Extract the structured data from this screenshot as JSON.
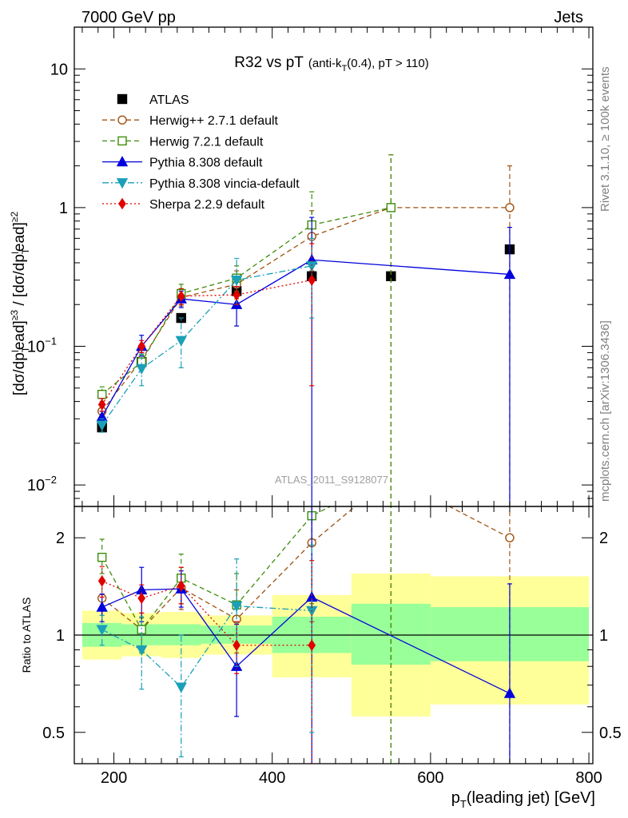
{
  "header": {
    "left": "7000 GeV pp",
    "right": "Jets"
  },
  "plot_title": {
    "main": "R32 vs pT",
    "sub": "(anti-k",
    "sub_sub": "T",
    "sub_tail": "(0.4), pT > 110)"
  },
  "side_labels": {
    "rivet": "Rivet 3.1.10, ≥ 100k events",
    "mcplots": "mcplots.cern.ch [arXiv:1306.3436]"
  },
  "watermark": "ATLAS_2011_S9128077",
  "ratio_ylabel": "Ratio to ATLAS",
  "colors": {
    "atlas": "#000000",
    "herwigpp": "#a0520f",
    "herwig7": "#3c8c0a",
    "pythia": "#0000dd",
    "vincia": "#1aa0b8",
    "sherpa": "#e00000",
    "band_inner": "#99ff99",
    "band_outer": "#ffff99"
  },
  "chart_data": [
    {
      "type": "line",
      "panel": "main",
      "ylabel_parts": [
        "[dσ/dp",
        "T",
        "l",
        "ead]",
        "≥3",
        " / [dσ/dp",
        "T",
        "l",
        "ead]",
        "≥2"
      ],
      "yscale": "log",
      "ylim": [
        0.007,
        20
      ],
      "xlim": [
        150,
        805
      ],
      "yticks": [
        {
          "value": 0.01,
          "label": "10",
          "exp": "−2"
        },
        {
          "value": 0.1,
          "label": "10",
          "exp": "−1"
        },
        {
          "value": 1,
          "label": "1",
          "exp": ""
        },
        {
          "value": 10,
          "label": "10",
          "exp": ""
        }
      ],
      "legend_position": "top-left",
      "series": [
        {
          "name": "ATLAS",
          "style": "data",
          "points": [
            {
              "x": 185,
              "y": 0.026,
              "lo": 0.024,
              "hi": 0.028
            },
            {
              "x": 235,
              "y": 0.077,
              "lo": 0.073,
              "hi": 0.082
            },
            {
              "x": 285,
              "y": 0.16,
              "lo": 0.152,
              "hi": 0.17
            },
            {
              "x": 355,
              "y": 0.25,
              "lo": 0.235,
              "hi": 0.265
            },
            {
              "x": 450,
              "y": 0.32,
              "lo": 0.29,
              "hi": 0.35
            },
            {
              "x": 550,
              "y": 0.32,
              "lo": 0.3,
              "hi": 0.34
            },
            {
              "x": 700,
              "y": 0.5,
              "lo": 0.46,
              "hi": 0.54
            }
          ]
        },
        {
          "name": "Herwig++ 2.7.1 default",
          "style": "herwigpp",
          "points": [
            {
              "x": 185,
              "y": 0.034,
              "lo": 0.03,
              "hi": 0.038
            },
            {
              "x": 235,
              "y": 0.08,
              "lo": 0.07,
              "hi": 0.09
            },
            {
              "x": 285,
              "y": 0.225,
              "lo": 0.195,
              "hi": 0.26
            },
            {
              "x": 355,
              "y": 0.28,
              "lo": 0.22,
              "hi": 0.35
            },
            {
              "x": 450,
              "y": 0.62,
              "lo": 0.35,
              "hi": 0.95
            },
            {
              "x": 550,
              "y": 1.0,
              "lo": 0.004,
              "hi": 2.4
            },
            {
              "x": 700,
              "y": 1.0,
              "lo": 0.004,
              "hi": 2.0
            }
          ]
        },
        {
          "name": "Herwig 7.2.1 default",
          "style": "herwig7",
          "points": [
            {
              "x": 185,
              "y": 0.045,
              "lo": 0.04,
              "hi": 0.051
            },
            {
              "x": 235,
              "y": 0.077,
              "lo": 0.068,
              "hi": 0.087
            },
            {
              "x": 285,
              "y": 0.24,
              "lo": 0.2,
              "hi": 0.28
            },
            {
              "x": 355,
              "y": 0.31,
              "lo": 0.25,
              "hi": 0.38
            },
            {
              "x": 450,
              "y": 0.75,
              "lo": 0.4,
              "hi": 1.3
            },
            {
              "x": 550,
              "y": 1.0,
              "lo": 0.004,
              "hi": 2.4
            }
          ]
        },
        {
          "name": "Pythia 8.308 default",
          "style": "pythia",
          "points": [
            {
              "x": 185,
              "y": 0.031,
              "lo": 0.028,
              "hi": 0.034
            },
            {
              "x": 235,
              "y": 0.1,
              "lo": 0.085,
              "hi": 0.12
            },
            {
              "x": 285,
              "y": 0.22,
              "lo": 0.19,
              "hi": 0.25
            },
            {
              "x": 355,
              "y": 0.2,
              "lo": 0.14,
              "hi": 0.27
            },
            {
              "x": 450,
              "y": 0.42,
              "lo": 0.004,
              "hi": 0.85
            },
            {
              "x": 700,
              "y": 0.33,
              "lo": 0.004,
              "hi": 0.72
            }
          ]
        },
        {
          "name": "Pythia 8.308 vincia-default",
          "style": "vincia",
          "points": [
            {
              "x": 185,
              "y": 0.027,
              "lo": 0.024,
              "hi": 0.03
            },
            {
              "x": 235,
              "y": 0.069,
              "lo": 0.052,
              "hi": 0.088
            },
            {
              "x": 285,
              "y": 0.11,
              "lo": 0.07,
              "hi": 0.16
            },
            {
              "x": 355,
              "y": 0.3,
              "lo": 0.2,
              "hi": 0.43
            },
            {
              "x": 450,
              "y": 0.38,
              "lo": 0.16,
              "hi": 0.6
            }
          ]
        },
        {
          "name": "Sherpa 2.2.9 default",
          "style": "sherpa",
          "points": [
            {
              "x": 185,
              "y": 0.038,
              "lo": 0.034,
              "hi": 0.042
            },
            {
              "x": 235,
              "y": 0.1,
              "lo": 0.09,
              "hi": 0.11
            },
            {
              "x": 285,
              "y": 0.23,
              "lo": 0.2,
              "hi": 0.26
            },
            {
              "x": 355,
              "y": 0.235,
              "lo": 0.2,
              "hi": 0.27
            },
            {
              "x": 450,
              "y": 0.3,
              "lo": 0.052,
              "hi": 0.55
            }
          ]
        }
      ]
    },
    {
      "type": "line",
      "panel": "ratio",
      "xlabel_parts": [
        "p",
        "T",
        "(leading jet) [GeV]"
      ],
      "ylabel": "Ratio to ATLAS",
      "yscale": "log",
      "ylim": [
        0.4,
        2.5
      ],
      "xlim": [
        150,
        805
      ],
      "yticks": [
        0.5,
        1,
        2
      ],
      "xticks": [
        200,
        400,
        600,
        800
      ],
      "bands": [
        {
          "x0": 160,
          "x1": 210,
          "inner_lo": 0.92,
          "inner_hi": 1.09,
          "outer_lo": 0.84,
          "outer_hi": 1.19
        },
        {
          "x0": 210,
          "x1": 260,
          "inner_lo": 0.93,
          "inner_hi": 1.08,
          "outer_lo": 0.86,
          "outer_hi": 1.17
        },
        {
          "x0": 260,
          "x1": 310,
          "inner_lo": 0.93,
          "inner_hi": 1.08,
          "outer_lo": 0.85,
          "outer_hi": 1.18
        },
        {
          "x0": 310,
          "x1": 400,
          "inner_lo": 0.94,
          "inner_hi": 1.07,
          "outer_lo": 0.87,
          "outer_hi": 1.15
        },
        {
          "x0": 400,
          "x1": 500,
          "inner_lo": 0.88,
          "inner_hi": 1.14,
          "outer_lo": 0.74,
          "outer_hi": 1.33
        },
        {
          "x0": 500,
          "x1": 600,
          "inner_lo": 0.81,
          "inner_hi": 1.25,
          "outer_lo": 0.56,
          "outer_hi": 1.55
        },
        {
          "x0": 600,
          "x1": 800,
          "inner_lo": 0.83,
          "inner_hi": 1.22,
          "outer_lo": 0.61,
          "outer_hi": 1.52
        }
      ],
      "series": [
        {
          "name": "Herwig++ 2.7.1 default",
          "style": "herwigpp",
          "points": [
            {
              "x": 185,
              "y": 1.3,
              "lo": 1.15,
              "hi": 1.45
            },
            {
              "x": 235,
              "y": 1.04,
              "lo": 0.9,
              "hi": 1.17
            },
            {
              "x": 285,
              "y": 1.4,
              "lo": 1.2,
              "hi": 1.62
            },
            {
              "x": 355,
              "y": 1.12,
              "lo": 0.88,
              "hi": 1.38
            },
            {
              "x": 450,
              "y": 1.93,
              "lo": 1.1,
              "hi": 2.6
            },
            {
              "x": 550,
              "y": 3.1,
              "lo": 0.01,
              "hi": 8
            },
            {
              "x": 700,
              "y": 2.0,
              "lo": 0.01,
              "hi": 4
            }
          ]
        },
        {
          "name": "Herwig 7.2.1 default",
          "style": "herwig7",
          "points": [
            {
              "x": 185,
              "y": 1.74,
              "lo": 1.55,
              "hi": 1.98
            },
            {
              "x": 235,
              "y": 1.04,
              "lo": 0.88,
              "hi": 1.13
            },
            {
              "x": 285,
              "y": 1.5,
              "lo": 1.25,
              "hi": 1.78
            },
            {
              "x": 355,
              "y": 1.24,
              "lo": 1.0,
              "hi": 1.55
            },
            {
              "x": 450,
              "y": 2.34,
              "lo": 1.25,
              "hi": 4.0
            },
            {
              "x": 550,
              "y": 3.1,
              "lo": 0.01,
              "hi": 8
            }
          ]
        },
        {
          "name": "Pythia 8.308 default",
          "style": "pythia",
          "points": [
            {
              "x": 185,
              "y": 1.22,
              "lo": 1.1,
              "hi": 1.34
            },
            {
              "x": 235,
              "y": 1.38,
              "lo": 1.1,
              "hi": 1.62
            },
            {
              "x": 285,
              "y": 1.39,
              "lo": 1.22,
              "hi": 1.58
            },
            {
              "x": 355,
              "y": 0.8,
              "lo": 0.56,
              "hi": 1.08
            },
            {
              "x": 450,
              "y": 1.31,
              "lo": 0.01,
              "hi": 2.7
            },
            {
              "x": 700,
              "y": 0.66,
              "lo": 0.01,
              "hi": 1.44
            }
          ]
        },
        {
          "name": "Pythia 8.308 vincia-default",
          "style": "vincia",
          "points": [
            {
              "x": 185,
              "y": 1.04,
              "lo": 0.93,
              "hi": 1.15
            },
            {
              "x": 235,
              "y": 0.9,
              "lo": 0.68,
              "hi": 1.14
            },
            {
              "x": 285,
              "y": 0.69,
              "lo": 0.42,
              "hi": 1.0
            },
            {
              "x": 355,
              "y": 1.23,
              "lo": 0.8,
              "hi": 1.72
            },
            {
              "x": 450,
              "y": 1.19,
              "lo": 0.5,
              "hi": 1.9
            }
          ]
        },
        {
          "name": "Sherpa 2.2.9 default",
          "style": "sherpa",
          "points": [
            {
              "x": 185,
              "y": 1.47,
              "lo": 1.31,
              "hi": 1.63
            },
            {
              "x": 235,
              "y": 1.3,
              "lo": 1.17,
              "hi": 1.43
            },
            {
              "x": 285,
              "y": 1.42,
              "lo": 1.25,
              "hi": 1.62
            },
            {
              "x": 355,
              "y": 0.93,
              "lo": 0.76,
              "hi": 1.1
            },
            {
              "x": 450,
              "y": 0.93,
              "lo": 0.16,
              "hi": 1.7
            }
          ]
        }
      ]
    }
  ]
}
